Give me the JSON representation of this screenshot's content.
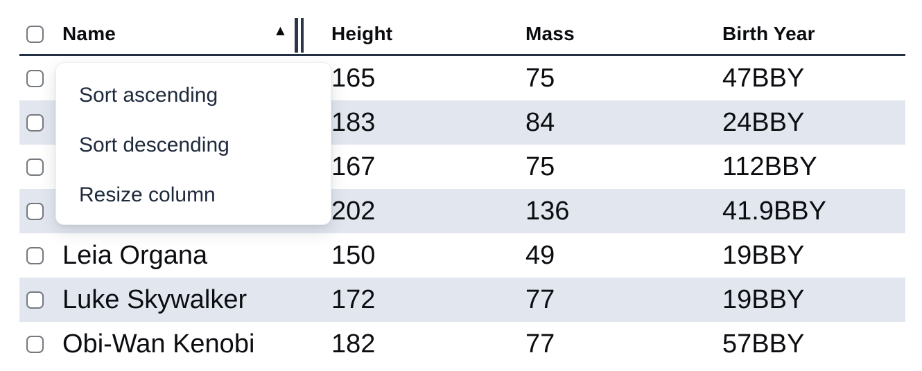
{
  "colors": {
    "stripe": "#e2e7ef",
    "header_border": "#233043",
    "menu_text": "#1e293b",
    "cell_text": "#0b0d10",
    "checkbox_border": "#75797f"
  },
  "icons": {
    "sort_ascending": "▲"
  },
  "table": {
    "columns": [
      {
        "label": "Name",
        "sorted": "ascending"
      },
      {
        "label": "Height"
      },
      {
        "label": "Mass"
      },
      {
        "label": "Birth Year"
      }
    ],
    "rows": [
      {
        "name": "",
        "height": "165",
        "mass": "75",
        "birth_year": "47BBY"
      },
      {
        "name": "",
        "height": "183",
        "mass": "84",
        "birth_year": "24BBY"
      },
      {
        "name": "",
        "height": "167",
        "mass": "75",
        "birth_year": "112BBY"
      },
      {
        "name": "",
        "height": "202",
        "mass": "136",
        "birth_year": "41.9BBY"
      },
      {
        "name": "Leia Organa",
        "height": "150",
        "mass": "49",
        "birth_year": "19BBY"
      },
      {
        "name": "Luke Skywalker",
        "height": "172",
        "mass": "77",
        "birth_year": "19BBY"
      },
      {
        "name": "Obi-Wan Kenobi",
        "height": "182",
        "mass": "77",
        "birth_year": "57BBY"
      }
    ]
  },
  "menu": {
    "items": [
      "Sort ascending",
      "Sort descending",
      "Resize column"
    ]
  }
}
